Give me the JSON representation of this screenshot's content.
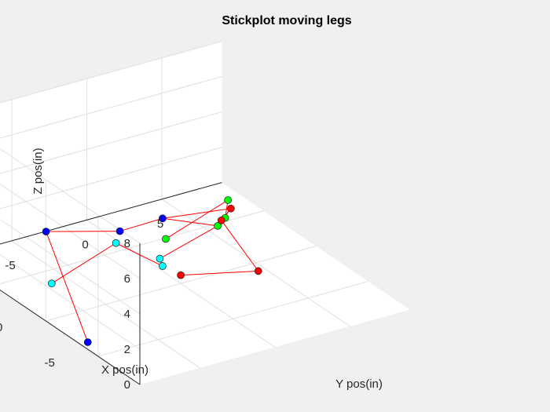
{
  "chart_data": {
    "type": "3d-line-scatter",
    "title": "Stickplot moving legs",
    "xlabel": "X pos(in)",
    "ylabel": "Y pos(in)",
    "zlabel": "Z pos(in)",
    "grid": true,
    "xlim": [
      -9,
      9
    ],
    "ylim": [
      -9,
      9
    ],
    "zlim": [
      0,
      8
    ],
    "x_ticks": [
      -5,
      0,
      5
    ],
    "y_ticks": [
      -5,
      0,
      5
    ],
    "z_ticks": [
      0,
      2,
      4,
      6,
      8
    ],
    "line_color": "#ff0000",
    "series": [
      {
        "color": "#0000ff",
        "points": [
          [
            -3.3,
            -8.5,
            0
          ],
          [
            1.7,
            -7.8,
            4.1
          ],
          [
            -1.2,
            -4.9,
            4.6
          ],
          [
            -2.7,
            -3.1,
            5.5
          ]
        ]
      },
      {
        "color": "#00ffff",
        "points": [
          [
            3.6,
            -6.1,
            0
          ],
          [
            -1.4,
            -5.3,
            4.1
          ],
          [
            -2.7,
            -3.1,
            2.8
          ],
          [
            -3.3,
            -3.7,
            3.6
          ]
        ]
      },
      {
        "color": "#00ff00",
        "points": [
          [
            4.9,
            2.4,
            0
          ],
          [
            -0.2,
            3.0,
            4.1
          ],
          [
            -2.8,
            1.0,
            4.6
          ],
          [
            -4.1,
            -0.4,
            5.0
          ]
        ]
      },
      {
        "color": "#ff0000",
        "points": [
          [
            -4.3,
            -3.0,
            2.9
          ],
          [
            -8.7,
            -0.9,
            4.4
          ],
          [
            -5.6,
            -1.2,
            6.1
          ],
          [
            -4.5,
            0.2,
            6.0
          ]
        ]
      }
    ],
    "body_links": [
      [
        1,
        2
      ],
      [
        2,
        3
      ],
      [
        0,
        3
      ],
      [
        2,
        0
      ]
    ]
  }
}
